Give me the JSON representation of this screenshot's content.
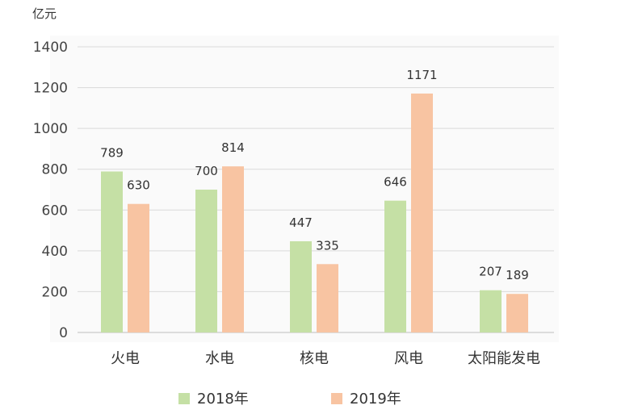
{
  "chart_data": {
    "type": "bar",
    "title": "",
    "ylabel": "亿元",
    "xlabel": "",
    "ylim": [
      0,
      1400
    ],
    "yticks": [
      0,
      200,
      400,
      600,
      800,
      1000,
      1200,
      1400
    ],
    "grid": true,
    "legend_position": "bottom",
    "categories": [
      "火电",
      "水电",
      "核电",
      "风电",
      "太阳能发电"
    ],
    "series": [
      {
        "name": "2018年",
        "color": "#c5e0a5",
        "values": [
          789,
          700,
          447,
          646,
          207
        ]
      },
      {
        "name": "2019年",
        "color": "#f8c4a2",
        "values": [
          630,
          814,
          335,
          1171,
          189
        ]
      }
    ]
  }
}
